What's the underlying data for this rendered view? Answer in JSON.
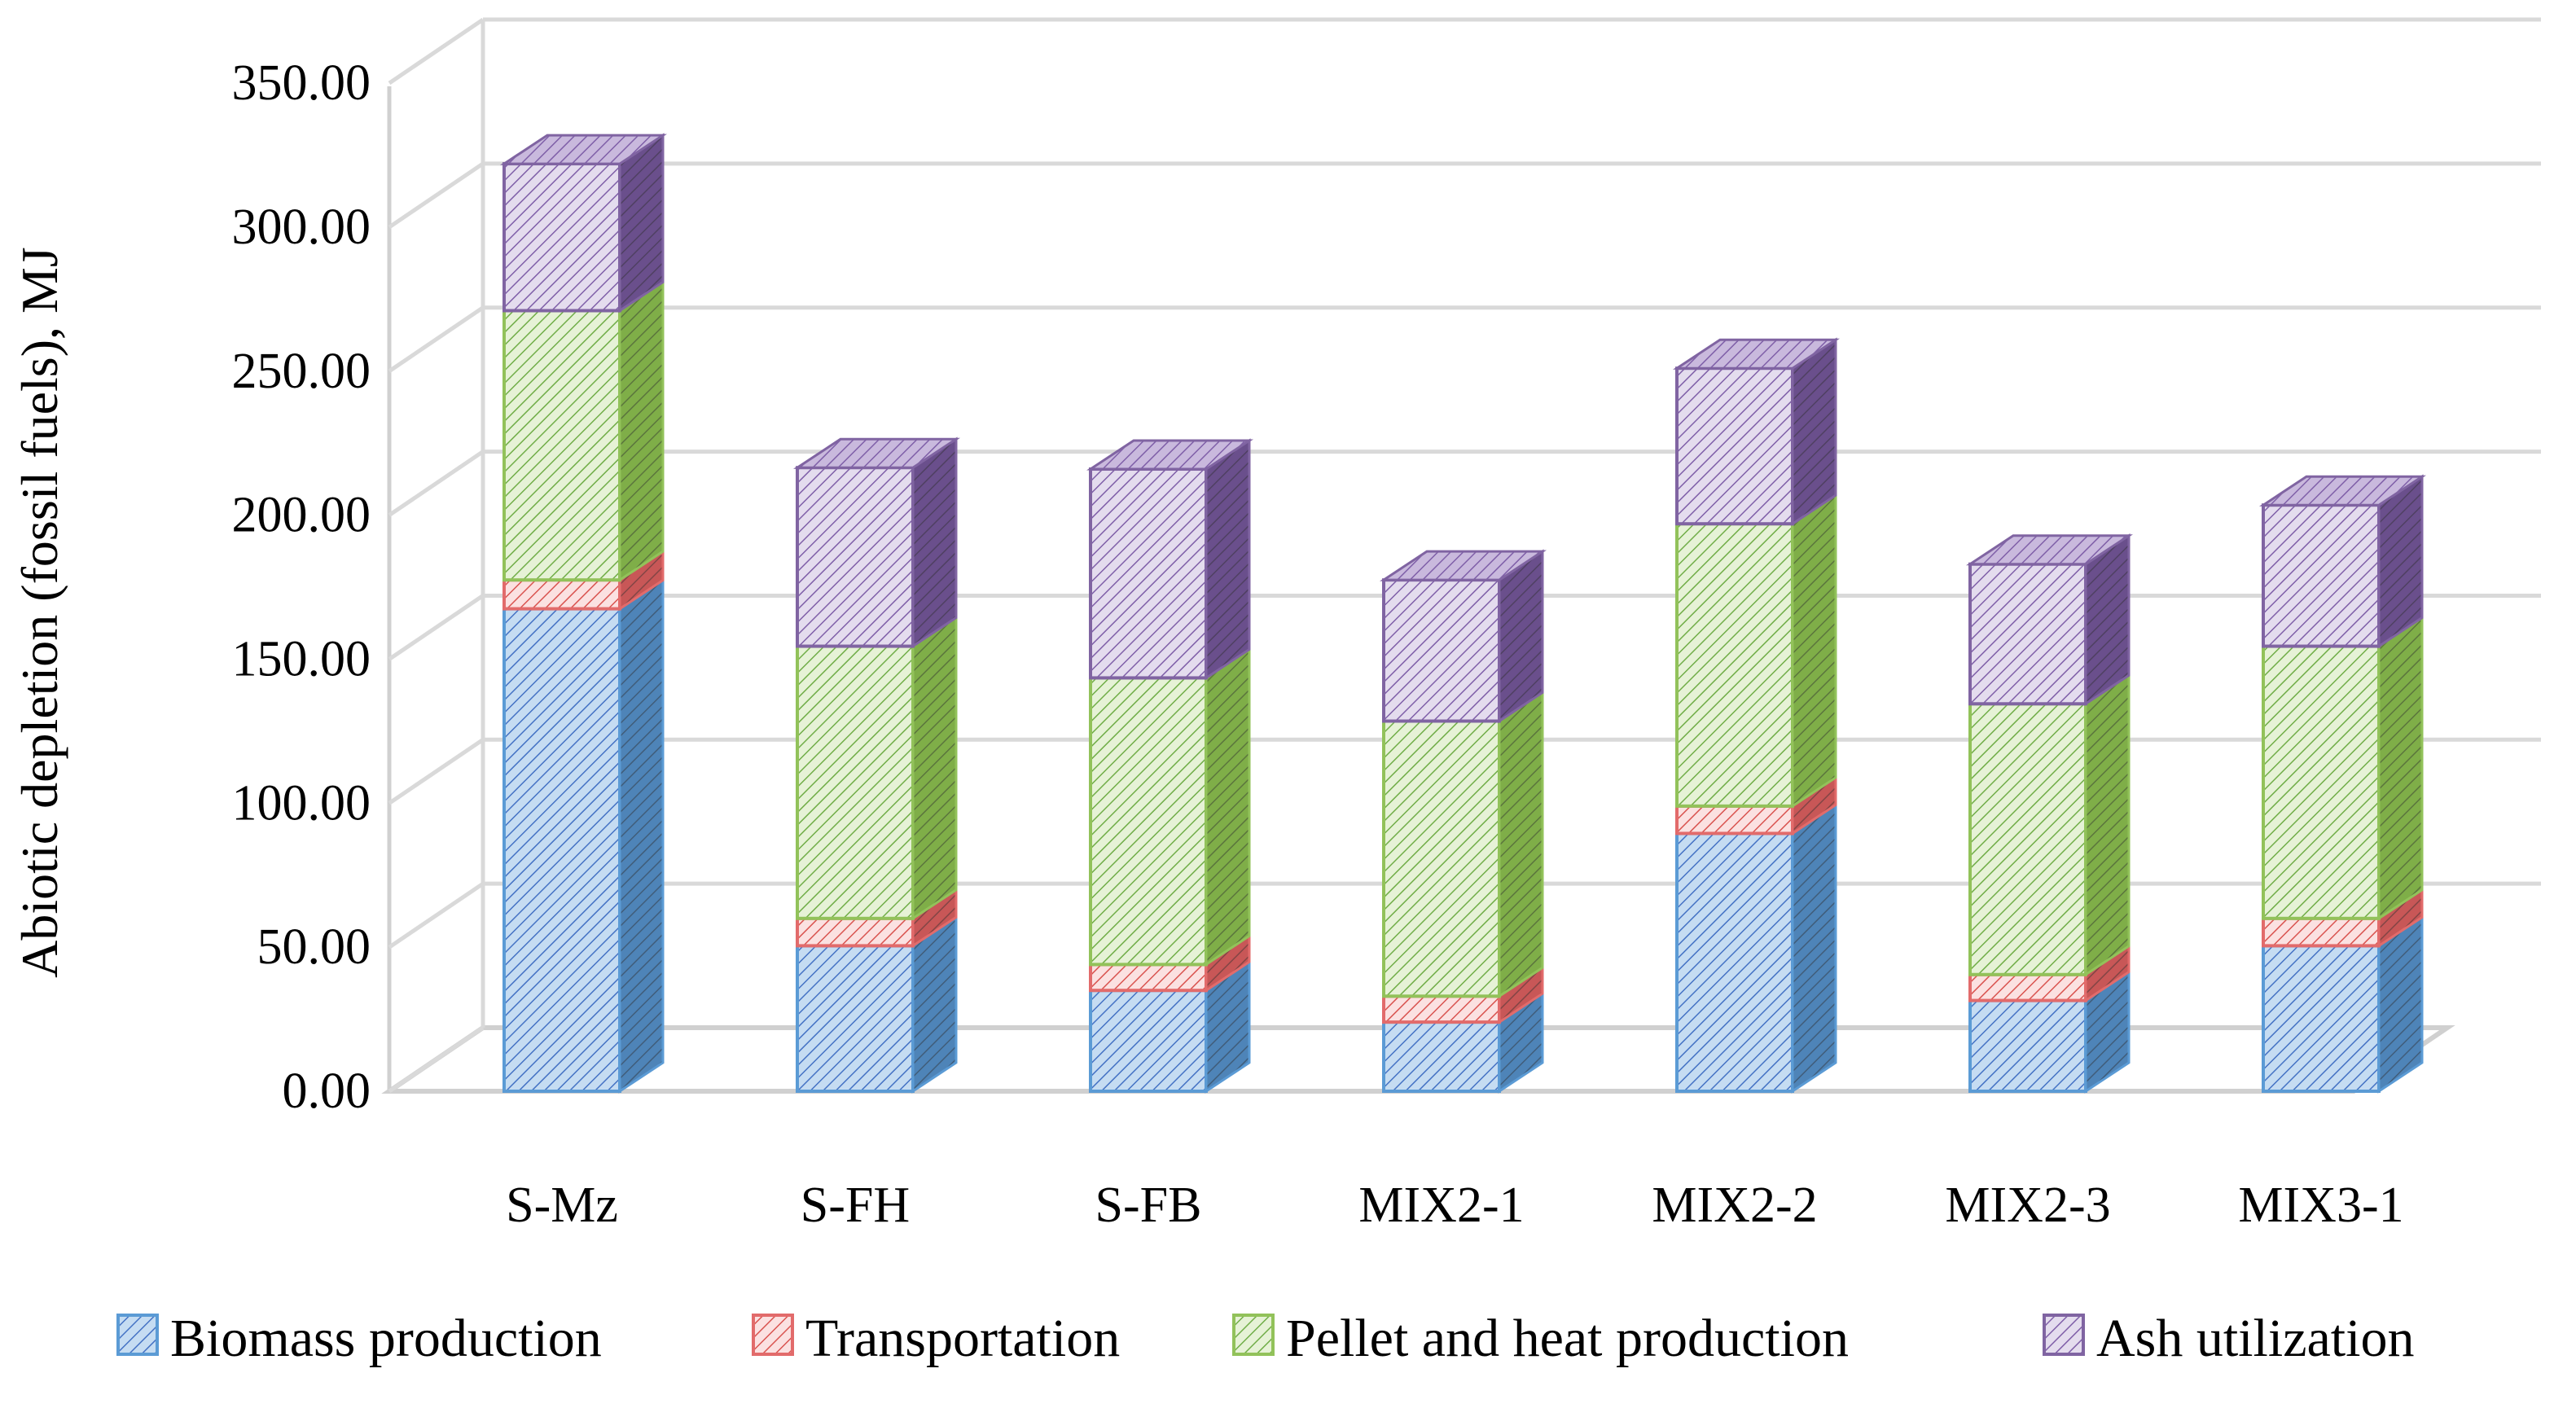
{
  "chart_data": {
    "type": "bar",
    "stacked": true,
    "three_d": true,
    "title": "",
    "xlabel": "",
    "ylabel": "Abiotic depletion  (fossil fuels), MJ",
    "ylim": [
      0,
      350
    ],
    "ytick_step": 50,
    "ytick_labels": [
      "0.00",
      "50.00",
      "100.00",
      "150.00",
      "200.00",
      "250.00",
      "300.00",
      "350.00"
    ],
    "grid": true,
    "legend_position": "bottom",
    "categories": [
      "S-Mz",
      "S-FH",
      "S-FB",
      "MIX2-1",
      "MIX2-2",
      "MIX2-3",
      "MIX3-1"
    ],
    "series": [
      {
        "name": "Biomass production",
        "color": "#5B9BD5",
        "face": "#C5DCF2",
        "side": "#4E84B8",
        "top": "#A9C8E8",
        "hatch": "#4472C4",
        "values": [
          167.5,
          50.5,
          35,
          24,
          89.5,
          31.5,
          50.5
        ]
      },
      {
        "name": "Transportation",
        "color": "#E26B6B",
        "face": "#FBE1E1",
        "side": "#C85757",
        "top": "#F0B8B8",
        "hatch": "#D9534F",
        "values": [
          10,
          9.5,
          9,
          9,
          9.5,
          9,
          9.5
        ]
      },
      {
        "name": "Pellet and heat production",
        "color": "#92C25A",
        "face": "#E6F2D6",
        "side": "#7FAE48",
        "top": "#CDE6AE",
        "hatch": "#70AD47",
        "values": [
          93.5,
          94.5,
          99.5,
          95.5,
          98,
          94,
          94.5
        ]
      },
      {
        "name": "Ash utilization",
        "color": "#8064A2",
        "face": "#E4DCEE",
        "side": "#6A4F8C",
        "top": "#C9B9DD",
        "hatch": "#7F5FA8",
        "values": [
          51,
          62,
          72.5,
          49,
          54,
          48.5,
          49
        ]
      }
    ]
  }
}
